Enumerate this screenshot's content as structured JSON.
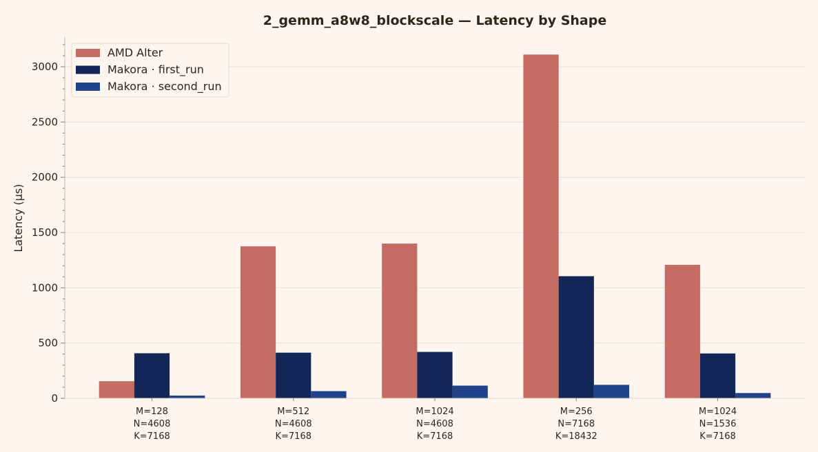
{
  "chart_data": {
    "type": "bar",
    "title": "2_gemm_a8w8_blockscale  —  Latency by Shape",
    "xlabel": "",
    "ylabel": "Latency (µs)",
    "ylim": [
      0,
      3300
    ],
    "yticks": [
      0,
      500,
      1000,
      1500,
      2000,
      2500,
      3000
    ],
    "grid": "horizontal",
    "legend_position": "top-left",
    "categories": [
      [
        "M=128",
        "N=4608",
        "K=7168"
      ],
      [
        "M=512",
        "N=4608",
        "K=7168"
      ],
      [
        "M=1024",
        "N=4608",
        "K=7168"
      ],
      [
        "M=256",
        "N=7168",
        "K=18432"
      ],
      [
        "M=1024",
        "N=1536",
        "K=7168"
      ]
    ],
    "series": [
      {
        "name": "AMD Alter",
        "color": "#c46b63",
        "values": [
          155,
          1375,
          1400,
          3110,
          1208
        ]
      },
      {
        "name": "Makora · first_run",
        "color": "#122658",
        "values": [
          408,
          413,
          420,
          1105,
          406
        ]
      },
      {
        "name": "Makora · second_run",
        "color": "#1f428a",
        "values": [
          25,
          65,
          115,
          122,
          48
        ]
      }
    ]
  }
}
